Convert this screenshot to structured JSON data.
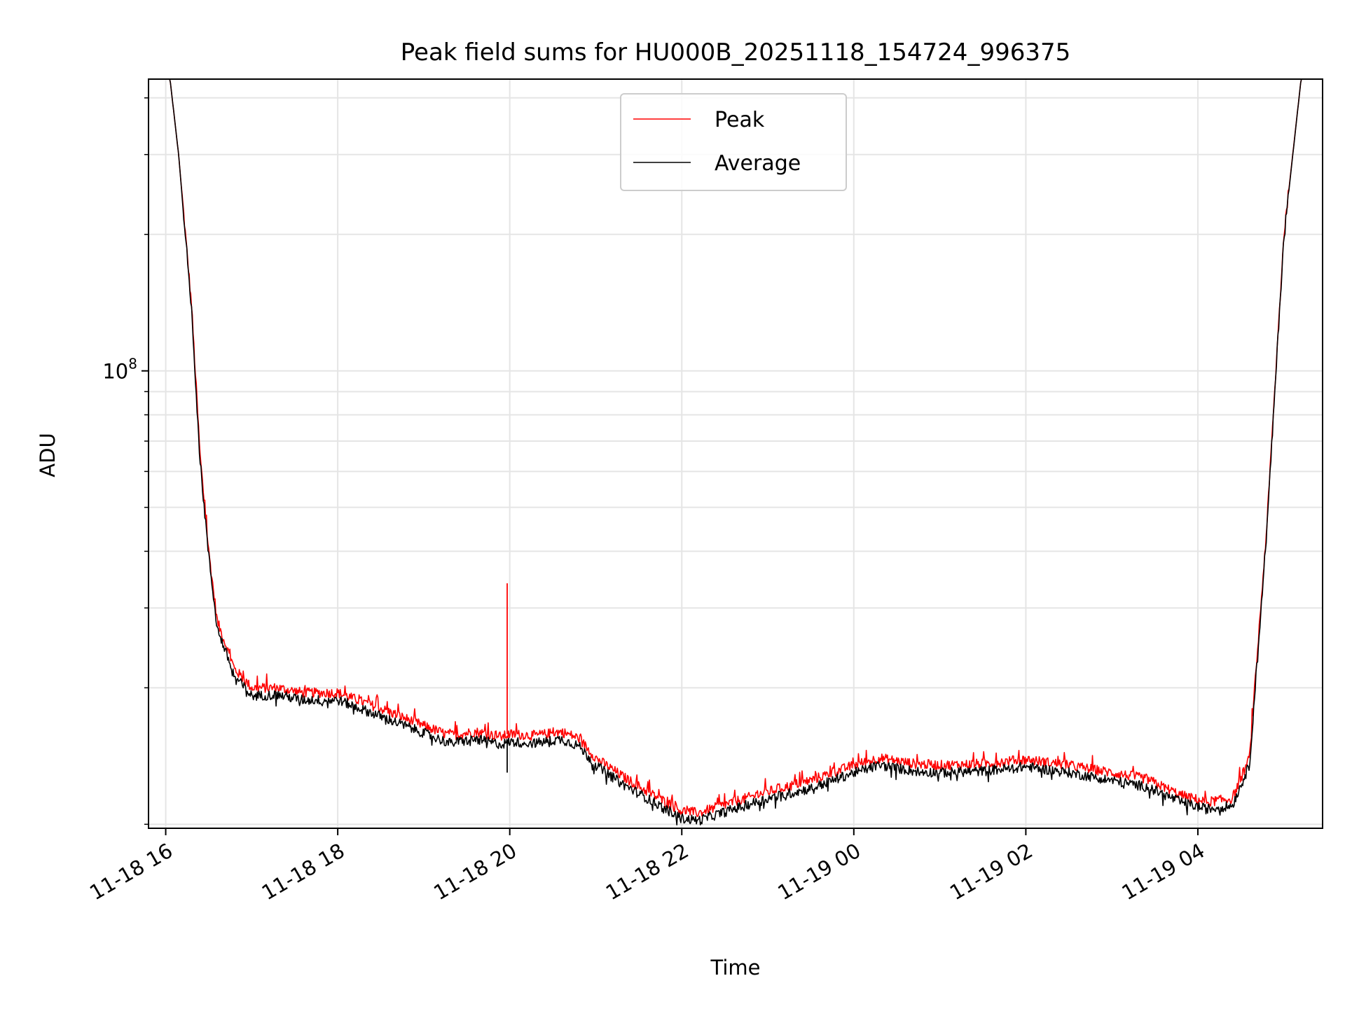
{
  "chart_data": {
    "type": "line",
    "title": "Peak field sums for HU000B_20251118_154724_996375",
    "xlabel": "Time",
    "ylabel": "ADU",
    "yscale": "log",
    "x_unit": "hours since 2025-11-18 00:00",
    "xlim": [
      15.8,
      29.45
    ],
    "ylim": [
      9800000.0,
      440000000.0
    ],
    "x_ticks": [
      {
        "value": 16,
        "label": "11-18 16"
      },
      {
        "value": 18,
        "label": "11-18 18"
      },
      {
        "value": 20,
        "label": "11-18 20"
      },
      {
        "value": 22,
        "label": "11-18 22"
      },
      {
        "value": 24,
        "label": "11-19 00"
      },
      {
        "value": 26,
        "label": "11-19 02"
      },
      {
        "value": 28,
        "label": "11-19 04"
      }
    ],
    "y_major_ticks": [
      {
        "value": 100000000,
        "base": "10",
        "exponent": "8"
      }
    ],
    "y_minor_ticks": [
      10000000,
      20000000,
      30000000,
      40000000,
      50000000,
      60000000,
      70000000,
      80000000,
      90000000,
      200000000,
      300000000,
      400000000
    ],
    "grid": true,
    "legend": {
      "position": "top-center",
      "entries": [
        "Peak",
        "Average"
      ]
    },
    "series": [
      {
        "name": "Peak",
        "color": "#ff0000",
        "x": [
          15.8,
          16.05,
          16.15,
          16.3,
          16.4,
          16.5,
          16.6,
          16.8,
          17.0,
          17.3,
          17.6,
          18.0,
          18.5,
          19.0,
          19.3,
          19.6,
          19.9,
          20.0,
          20.3,
          20.6,
          20.8,
          21.0,
          21.3,
          21.6,
          22.0,
          22.2,
          22.6,
          23.0,
          23.5,
          24.0,
          24.3,
          24.7,
          25.0,
          25.5,
          26.0,
          26.5,
          27.0,
          27.4,
          27.8,
          28.1,
          28.4,
          28.6,
          28.8,
          29.0,
          29.2,
          29.45
        ],
        "y": [
          440000000,
          440000000,
          300000000,
          140000000,
          65000000,
          40000000,
          28000000,
          22000000,
          20000000,
          20000000,
          19500000,
          19500000,
          18000000,
          16500000,
          15700000,
          16000000,
          15600000,
          15800000,
          15700000,
          16000000,
          15500000,
          14000000,
          12800000,
          11800000,
          10700000,
          10600000,
          11200000,
          11800000,
          12500000,
          13500000,
          14000000,
          13600000,
          13500000,
          13600000,
          13900000,
          13500000,
          13000000,
          12600000,
          11600000,
          11200000,
          11400000,
          14000000,
          45000000,
          200000000,
          440000000,
          440000000
        ]
      },
      {
        "name": "Average",
        "color": "#000000",
        "x": [
          15.8,
          16.05,
          16.15,
          16.3,
          16.4,
          16.5,
          16.6,
          16.8,
          17.0,
          17.3,
          17.6,
          18.0,
          18.5,
          19.0,
          19.3,
          19.6,
          19.9,
          20.0,
          20.3,
          20.6,
          20.8,
          21.0,
          21.3,
          21.6,
          22.0,
          22.2,
          22.6,
          23.0,
          23.5,
          24.0,
          24.3,
          24.7,
          25.0,
          25.5,
          26.0,
          26.5,
          27.0,
          27.4,
          27.8,
          28.1,
          28.4,
          28.6,
          28.8,
          29.0,
          29.2,
          29.45
        ],
        "y": [
          440000000,
          440000000,
          300000000,
          138000000,
          63000000,
          39000000,
          27000000,
          21200000,
          19200000,
          19300000,
          18800000,
          18800000,
          17300000,
          15900000,
          15100000,
          15400000,
          15000000,
          15200000,
          15100000,
          15400000,
          14900000,
          13500000,
          12300000,
          11400000,
          10300000,
          10200000,
          10800000,
          11400000,
          12000000,
          13000000,
          13500000,
          13100000,
          13000000,
          13100000,
          13400000,
          13000000,
          12500000,
          12100000,
          11200000,
          10800000,
          11000000,
          13500000,
          44000000,
          198000000,
          440000000,
          440000000
        ]
      }
    ],
    "annotations": [
      {
        "series": "Peak",
        "x": 19.97,
        "y_low": 15800000,
        "y_high": 34000000,
        "description": "spike"
      },
      {
        "series": "Average",
        "x": 19.97,
        "y_low": 13000000,
        "y_high": 15200000,
        "description": "dip"
      }
    ]
  }
}
